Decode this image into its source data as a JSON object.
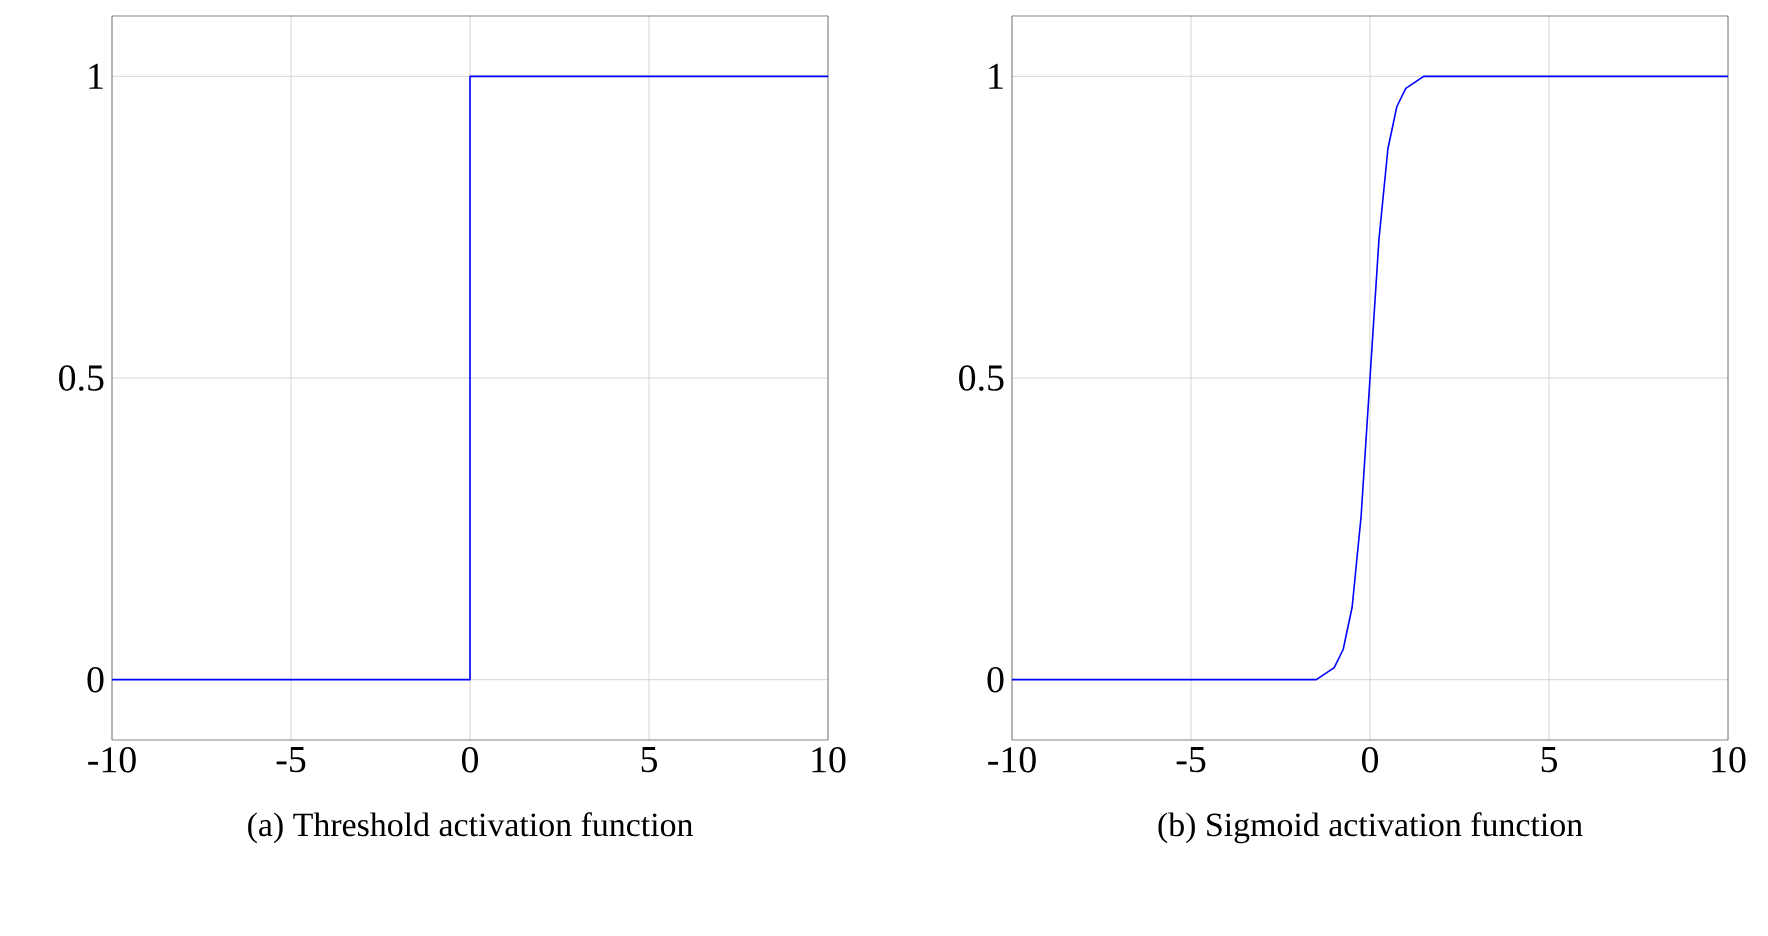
{
  "chart_data": [
    {
      "type": "line",
      "x": [
        -10,
        0,
        0,
        10
      ],
      "values": [
        0,
        0,
        1,
        1
      ],
      "color": "#0000ff",
      "xlim": [
        -10,
        10
      ],
      "ylim": [
        -0.1,
        1.1
      ],
      "xticks": [
        -10,
        -5,
        0,
        5,
        10
      ],
      "yticks": [
        0,
        0.5,
        1
      ],
      "grid": true,
      "marker": "none",
      "annotations": [
        "(a) Threshold activation function"
      ]
    },
    {
      "type": "line",
      "x": [
        -10,
        -3,
        -2,
        -1.5,
        -1.25,
        -1,
        -0.75,
        -0.5,
        -0.25,
        0,
        0.25,
        0.5,
        0.75,
        1,
        1.25,
        1.5,
        2,
        3,
        10
      ],
      "values": [
        0,
        0,
        0,
        0,
        0.01,
        0.02,
        0.05,
        0.12,
        0.27,
        0.5,
        0.73,
        0.88,
        0.95,
        0.98,
        0.99,
        1,
        1,
        1,
        1
      ],
      "color": "#0000ff",
      "xlim": [
        -10,
        10
      ],
      "ylim": [
        -0.1,
        1.1
      ],
      "xticks": [
        -10,
        -5,
        0,
        5,
        10
      ],
      "yticks": [
        0,
        0.5,
        1
      ],
      "grid": true,
      "marker": "none",
      "annotations": [
        "(b) Sigmoid activation function"
      ]
    }
  ]
}
